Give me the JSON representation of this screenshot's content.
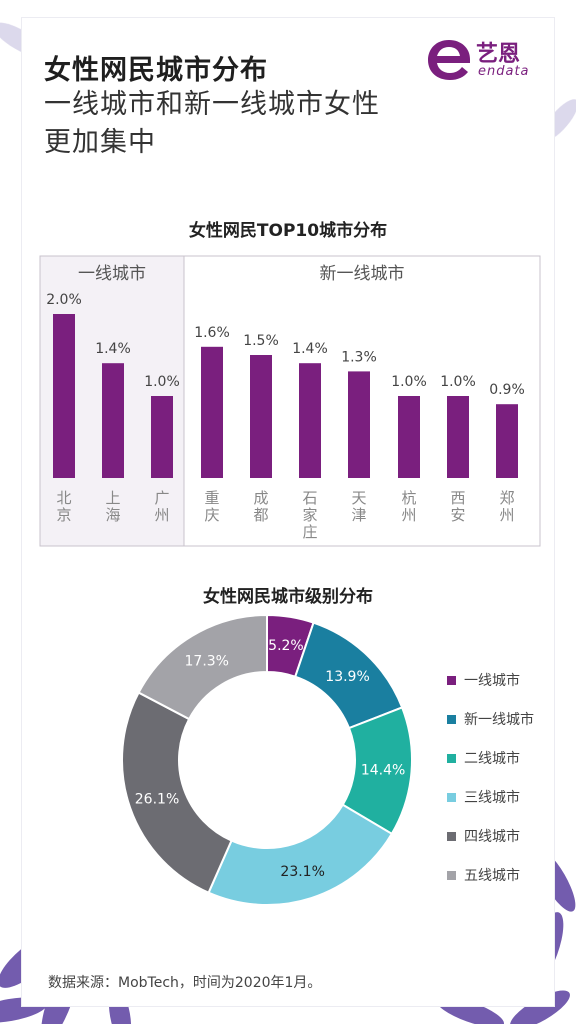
{
  "header": {
    "title": "女性网民城市分布",
    "subtitle": "一线城市和新一线城市女性更加集中"
  },
  "logo": {
    "cn": "艺恩",
    "en": "endata",
    "icon": "e-logo-icon",
    "color": "#7a1f7e"
  },
  "colors": {
    "bar": "#7a1f7e",
    "panel_border": "#c8c3cc",
    "panel_tier1_bg": "#f4f1f6"
  },
  "chart_data": [
    {
      "type": "bar",
      "title": "女性网民TOP10城市分布",
      "groups": [
        {
          "label": "一线城市",
          "categories": [
            "北京",
            "上海",
            "广州"
          ]
        },
        {
          "label": "新一线城市",
          "categories": [
            "重庆",
            "成都",
            "石家庄",
            "天津",
            "杭州",
            "西安",
            "郑州"
          ]
        }
      ],
      "categories": [
        "北京",
        "上海",
        "广州",
        "重庆",
        "成都",
        "石家庄",
        "天津",
        "杭州",
        "西安",
        "郑州"
      ],
      "values": [
        2.0,
        1.4,
        1.0,
        1.6,
        1.5,
        1.4,
        1.3,
        1.0,
        1.0,
        0.9
      ],
      "value_labels": [
        "2.0%",
        "1.4%",
        "1.0%",
        "1.6%",
        "1.5%",
        "1.4%",
        "1.3%",
        "1.0%",
        "1.0%",
        "0.9%"
      ],
      "unit": "%",
      "ylim": [
        0,
        2.0
      ],
      "grid": false
    },
    {
      "type": "pie",
      "variant": "donut",
      "title": "女性网民城市级别分布",
      "labels": [
        "一线城市",
        "新一线城市",
        "二线城市",
        "三线城市",
        "四线城市",
        "五线城市"
      ],
      "values": [
        5.2,
        13.9,
        14.4,
        23.1,
        26.1,
        17.3
      ],
      "value_labels": [
        "5.2%",
        "13.9%",
        "14.4%",
        "23.1%",
        "26.1%",
        "17.3%"
      ],
      "colors": [
        "#7a1f7e",
        "#1a7fa0",
        "#20b0a0",
        "#78cde0",
        "#6c6c72",
        "#a3a3a8"
      ],
      "label_colors": [
        "#ffffff",
        "#ffffff",
        "#ffffff",
        "#222222",
        "#ffffff",
        "#ffffff"
      ],
      "legend_position": "right"
    }
  ],
  "footer": {
    "source": "数据来源：MobTech，时间为2020年1月。"
  }
}
